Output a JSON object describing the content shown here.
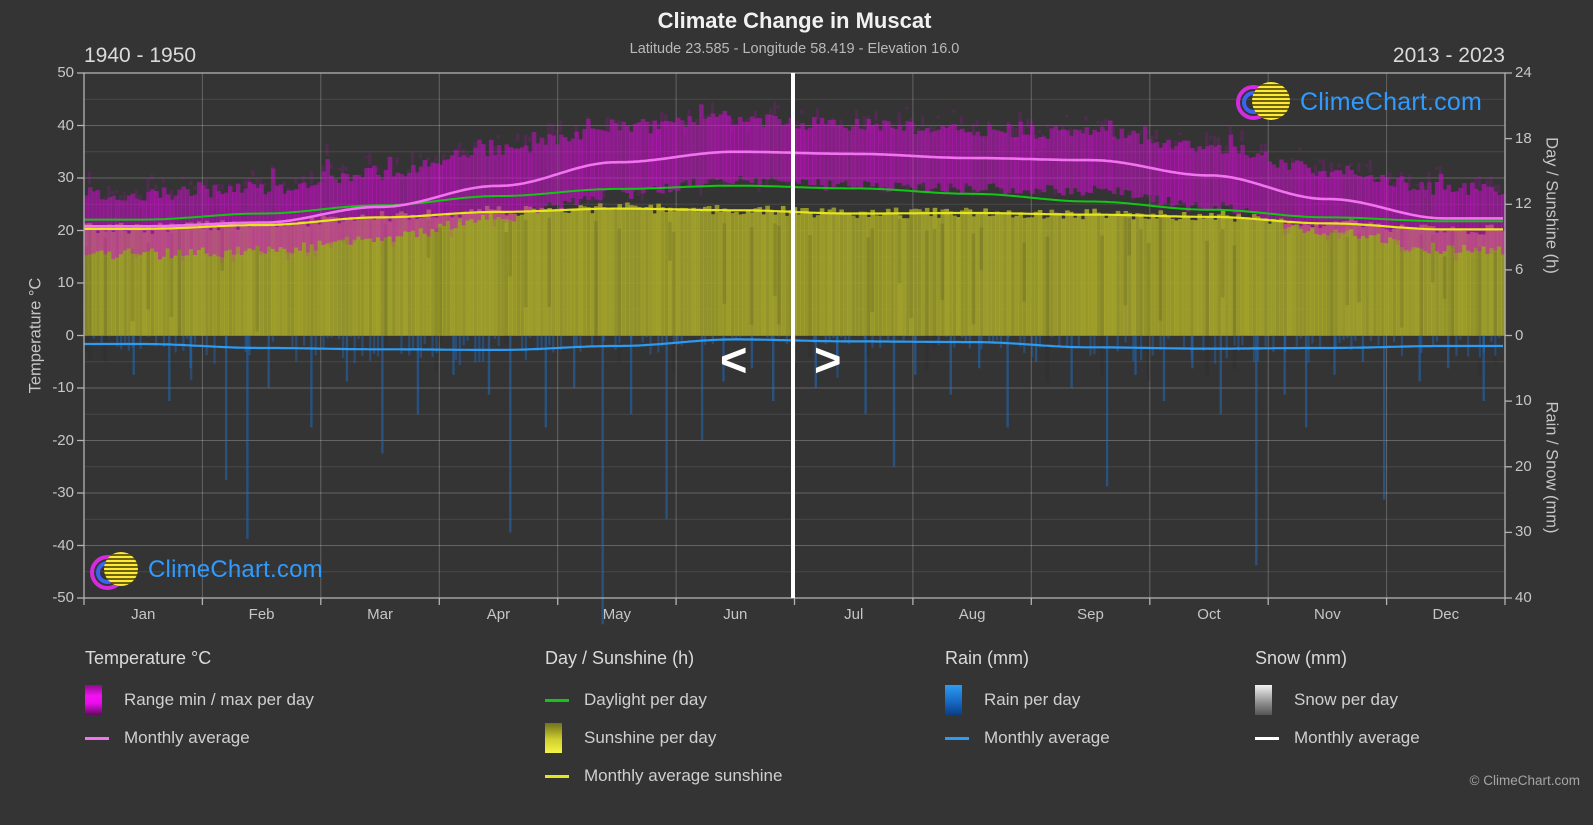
{
  "header": {
    "title": "Climate Change in Muscat",
    "subtitle": "Latitude 23.585 - Longitude 58.419 - Elevation 16.0",
    "period_left": "1940 - 1950",
    "period_right": "2013 - 2023"
  },
  "branding": {
    "logo_text": "ClimeChart.com",
    "copyright": "© ClimeChart.com"
  },
  "navigation": {
    "left_arrow": "<",
    "right_arrow": ">"
  },
  "axes": {
    "left": {
      "label": "Temperature °C",
      "ticks": [
        50,
        40,
        30,
        20,
        10,
        0,
        -10,
        -20,
        -30,
        -40,
        -50
      ]
    },
    "right_top": {
      "label": "Day / Sunshine (h)",
      "ticks": [
        24,
        18,
        12,
        6,
        0
      ]
    },
    "right_bottom": {
      "label": "Rain / Snow (mm)",
      "ticks": [
        10,
        20,
        30,
        40
      ]
    },
    "x": {
      "months": [
        "Jan",
        "Feb",
        "Mar",
        "Apr",
        "May",
        "Jun",
        "Jul",
        "Aug",
        "Sep",
        "Oct",
        "Nov",
        "Dec"
      ]
    }
  },
  "colors": {
    "background": "#343434",
    "grid_major": "rgba(255,255,255,0.24)",
    "grid_minor": "rgba(255,255,255,0.10)",
    "frame": "#b3b3b3",
    "temp_band": "#cf0ccf",
    "temp_avg_line": "#f173ef",
    "daylight_line": "#15c515",
    "sunshine_fill": "#a3a32b",
    "sunshine_avg_line": "#e6e61c",
    "rain_bar": "#1d6fc8",
    "rain_avg_line": "#2b9bf4",
    "divider": "#ffffff"
  },
  "chart_data": {
    "type": "area",
    "title": "Climate Change in Muscat",
    "months": [
      "Jan",
      "Feb",
      "Mar",
      "Apr",
      "May",
      "Jun",
      "Jul",
      "Aug",
      "Sep",
      "Oct",
      "Nov",
      "Dec"
    ],
    "period_left_years": "1940 - 1950",
    "period_right_years": "2013 - 2023",
    "period_split_month_index": 6,
    "axis_ranges": {
      "temperature_c": [
        -50,
        50
      ],
      "day_sunshine_h": [
        0,
        24
      ],
      "rain_snow_mm": [
        0,
        40
      ]
    },
    "series": [
      {
        "name": "Temperature range max per day (°C)",
        "monthly": [
          27,
          28,
          31,
          35.5,
          39.5,
          41,
          40,
          39,
          38.5,
          36,
          31.5,
          28
        ]
      },
      {
        "name": "Temperature range min per day (°C)",
        "monthly": [
          15.5,
          16,
          18.5,
          22.5,
          27,
          29.5,
          28.5,
          28,
          27.5,
          24.5,
          20,
          16.5
        ]
      },
      {
        "name": "Temperature monthly average (°C)",
        "monthly": [
          20.8,
          21.5,
          24.5,
          28.5,
          33,
          35,
          34.6,
          33.8,
          33.4,
          30.5,
          26,
          22.3
        ]
      },
      {
        "name": "Daylight per day (h)",
        "monthly": [
          10.6,
          11.15,
          11.9,
          12.75,
          13.4,
          13.7,
          13.45,
          12.95,
          12.25,
          11.5,
          10.8,
          10.45
        ]
      },
      {
        "name": "Sunshine per day (h)",
        "monthly": [
          9.8,
          10.2,
          10.9,
          11.4,
          11.7,
          11.5,
          11.2,
          11.25,
          11.1,
          10.9,
          10.3,
          9.7
        ]
      },
      {
        "name": "Monthly average sunshine (h)",
        "monthly": [
          9.75,
          10.1,
          10.8,
          11.3,
          11.6,
          11.45,
          11.15,
          11.2,
          11.05,
          10.85,
          10.25,
          9.7
        ]
      },
      {
        "name": "Rain monthly average (mm)",
        "monthly": [
          1.3,
          1.9,
          2.1,
          2.2,
          1.6,
          0.6,
          0.9,
          1.0,
          1.8,
          2.0,
          1.9,
          1.6
        ]
      },
      {
        "name": "Snow per day (mm)",
        "monthly": [
          0,
          0,
          0,
          0,
          0,
          0,
          0,
          0,
          0,
          0,
          0,
          0
        ]
      }
    ],
    "rain_daily_spikes": [
      [
        0.035,
        6
      ],
      [
        0.06,
        10
      ],
      [
        0.075,
        5
      ],
      [
        0.1,
        22
      ],
      [
        0.115,
        31
      ],
      [
        0.13,
        8
      ],
      [
        0.16,
        14
      ],
      [
        0.185,
        7
      ],
      [
        0.21,
        18
      ],
      [
        0.235,
        12
      ],
      [
        0.26,
        6
      ],
      [
        0.285,
        9
      ],
      [
        0.3,
        30
      ],
      [
        0.325,
        14
      ],
      [
        0.345,
        8
      ],
      [
        0.365,
        44
      ],
      [
        0.385,
        12
      ],
      [
        0.41,
        28
      ],
      [
        0.435,
        16
      ],
      [
        0.45,
        7
      ],
      [
        0.47,
        5
      ],
      [
        0.485,
        10
      ],
      [
        0.5,
        4
      ],
      [
        0.515,
        8
      ],
      [
        0.53,
        4
      ],
      [
        0.55,
        12
      ],
      [
        0.57,
        20
      ],
      [
        0.585,
        6
      ],
      [
        0.61,
        9
      ],
      [
        0.63,
        5
      ],
      [
        0.65,
        14
      ],
      [
        0.67,
        4
      ],
      [
        0.695,
        8
      ],
      [
        0.72,
        23
      ],
      [
        0.74,
        6
      ],
      [
        0.76,
        10
      ],
      [
        0.78,
        5
      ],
      [
        0.8,
        12
      ],
      [
        0.825,
        35
      ],
      [
        0.845,
        9
      ],
      [
        0.86,
        14
      ],
      [
        0.88,
        6
      ],
      [
        0.9,
        4
      ],
      [
        0.915,
        25
      ],
      [
        0.94,
        7
      ],
      [
        0.96,
        5
      ],
      [
        0.985,
        10
      ]
    ]
  },
  "legend": {
    "groups": [
      {
        "title": "Temperature °C",
        "items": [
          {
            "label": "Range min / max per day"
          },
          {
            "label": "Monthly average"
          }
        ]
      },
      {
        "title": "Day / Sunshine (h)",
        "items": [
          {
            "label": "Daylight per day"
          },
          {
            "label": "Sunshine per day"
          },
          {
            "label": "Monthly average sunshine"
          }
        ]
      },
      {
        "title": "Rain (mm)",
        "items": [
          {
            "label": "Rain per day"
          },
          {
            "label": "Monthly average"
          }
        ]
      },
      {
        "title": "Snow (mm)",
        "items": [
          {
            "label": "Snow per day"
          },
          {
            "label": "Monthly average"
          }
        ]
      }
    ]
  }
}
